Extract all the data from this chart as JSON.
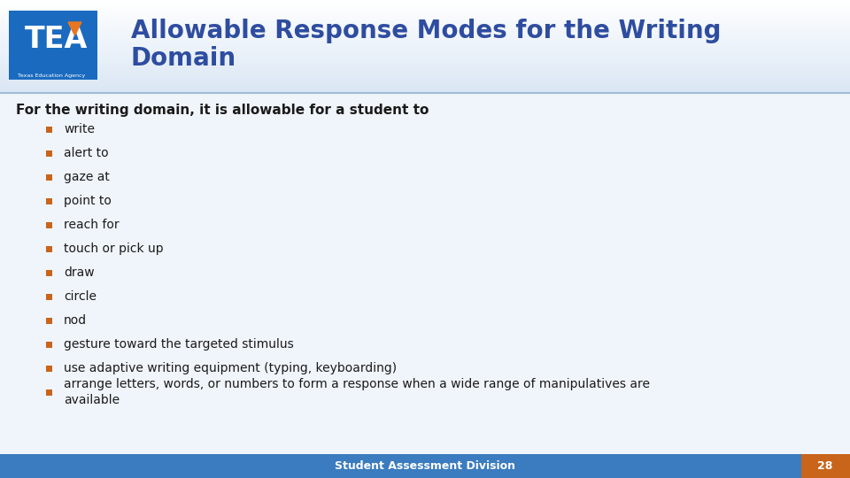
{
  "title_line1": "Allowable Response Modes for the Writing",
  "title_line2": "Domain",
  "title_color": "#2E4DA0",
  "subtitle": "For the writing domain, it is allowable for a student to",
  "subtitle_color": "#1a1a1a",
  "bullet_color": "#C8651B",
  "bullet_text_color": "#1a1a1a",
  "bullets": [
    "write",
    "alert to",
    "gaze at",
    "point to",
    "reach for",
    "touch or pick up",
    "draw",
    "circle",
    "nod",
    "gesture toward the targeted stimulus",
    "use adaptive writing equipment (typing, keyboarding)",
    "arrange letters, words, or numbers to form a response when a wide range of manipulatives are\navailable"
  ],
  "footer_text": "Student Assessment Division",
  "footer_page": "28",
  "footer_bg": "#3B7BBF",
  "footer_right_color": "#C8651B",
  "bg_color": "#f0f5fb"
}
